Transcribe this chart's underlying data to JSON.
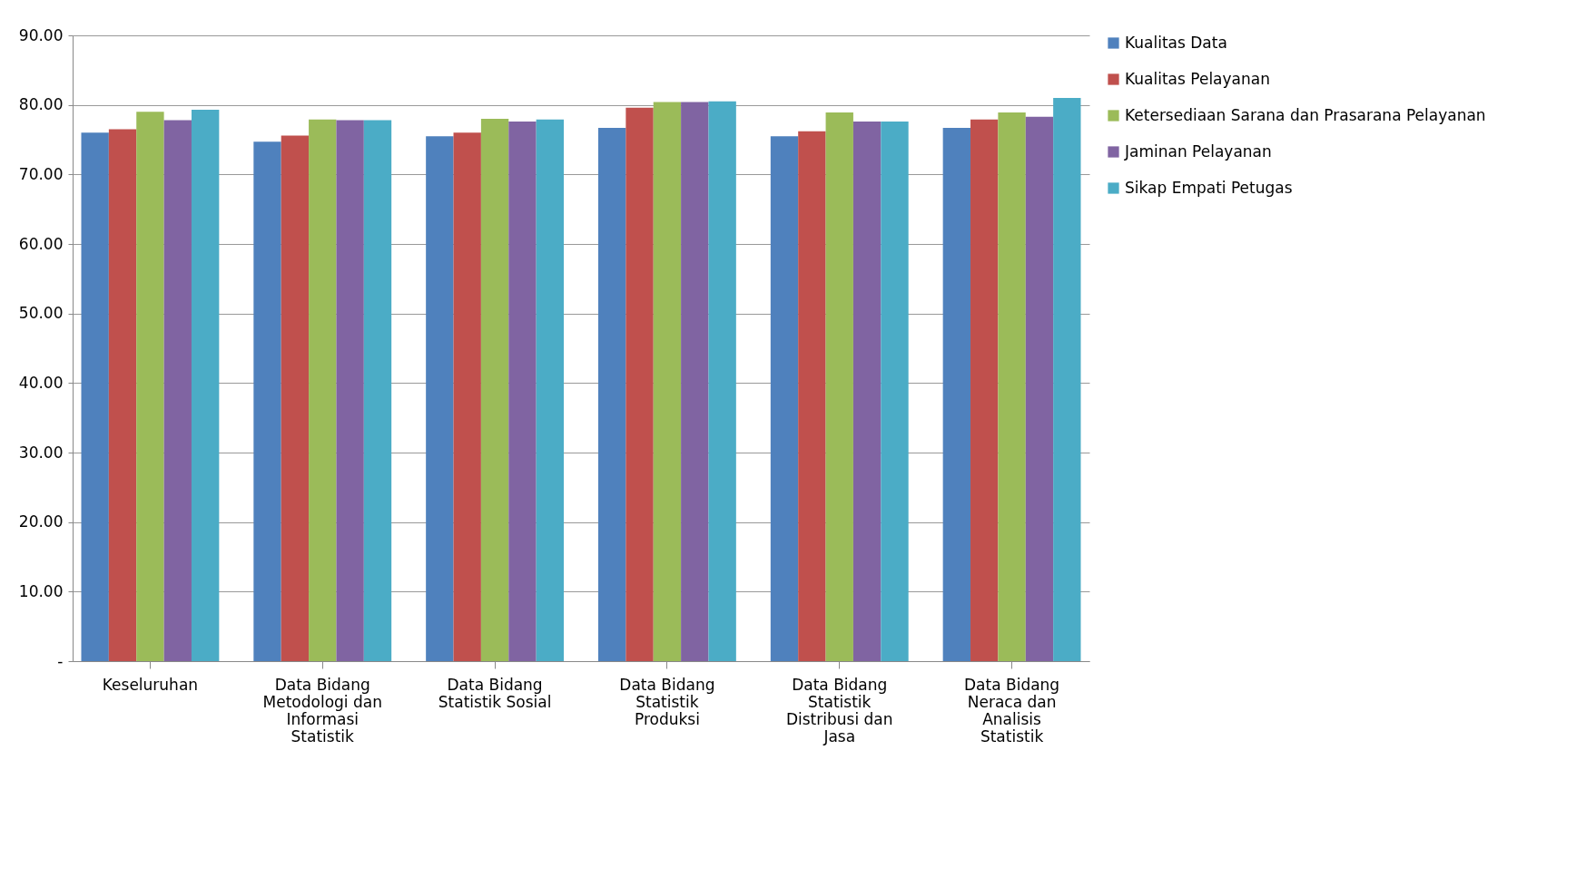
{
  "chart_data": {
    "type": "bar",
    "categories": [
      "Keseluruhan",
      "Data Bidang Metodologi dan Informasi Statistik",
      "Data Bidang Statistik Sosial",
      "Data Bidang Statistik Produksi",
      "Data Bidang Statistik Distribusi dan Jasa",
      "Data Bidang Neraca dan Analisis Statistik"
    ],
    "series": [
      {
        "name": "Kualitas Data",
        "color": "#4f81bd",
        "values": [
          76.0,
          74.7,
          75.5,
          76.7,
          75.5,
          76.7
        ]
      },
      {
        "name": "Kualitas Pelayanan",
        "color": "#c0504d",
        "values": [
          76.5,
          75.6,
          76.0,
          79.6,
          76.2,
          77.9
        ]
      },
      {
        "name": "Ketersediaan Sarana dan Prasarana Pelayanan",
        "color": "#9bbb59",
        "values": [
          79.0,
          77.9,
          78.0,
          80.4,
          78.9,
          78.9
        ]
      },
      {
        "name": "Jaminan Pelayanan",
        "color": "#8064a2",
        "values": [
          77.8,
          77.8,
          77.6,
          80.4,
          77.6,
          78.3
        ]
      },
      {
        "name": "Sikap Empati Petugas",
        "color": "#4bacc6",
        "values": [
          79.3,
          77.8,
          77.9,
          80.5,
          77.6,
          81.0
        ]
      }
    ],
    "ylim": [
      0,
      90
    ],
    "yticks": [
      {
        "value": 0,
        "label": "-"
      },
      {
        "value": 10,
        "label": "10.00"
      },
      {
        "value": 20,
        "label": "20.00"
      },
      {
        "value": 30,
        "label": "30.00"
      },
      {
        "value": 40,
        "label": "40.00"
      },
      {
        "value": 50,
        "label": "50.00"
      },
      {
        "value": 60,
        "label": "60.00"
      },
      {
        "value": 70,
        "label": "70.00"
      },
      {
        "value": 80,
        "label": "80.00"
      },
      {
        "value": 90,
        "label": "90.00"
      }
    ],
    "grid": "y",
    "legend": "right"
  }
}
